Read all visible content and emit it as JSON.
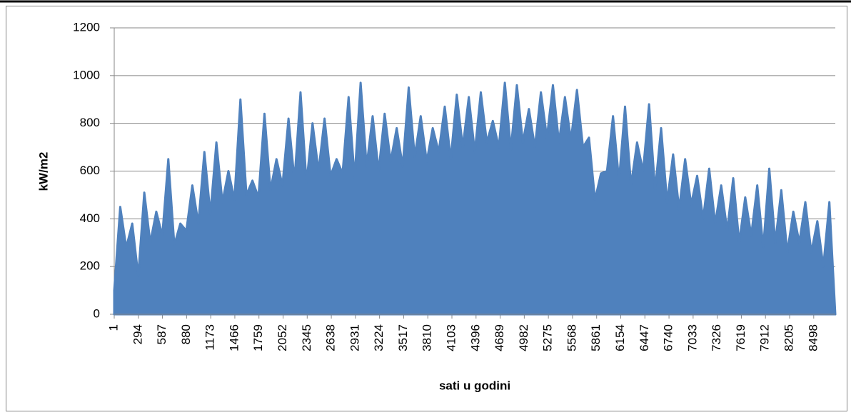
{
  "chart_data": {
    "type": "area",
    "x_label": "sati u godini",
    "y_label": "kW/m2",
    "color": "#4f81bd",
    "grid": true,
    "x": [
      1,
      74,
      147,
      220,
      293,
      366,
      439,
      512,
      585,
      658,
      731,
      804,
      877,
      950,
      1023,
      1096,
      1169,
      1242,
      1315,
      1388,
      1461,
      1534,
      1607,
      1680,
      1753,
      1826,
      1899,
      1972,
      2045,
      2118,
      2191,
      2264,
      2337,
      2410,
      2483,
      2556,
      2629,
      2702,
      2775,
      2848,
      2921,
      2994,
      3067,
      3140,
      3213,
      3286,
      3359,
      3432,
      3505,
      3578,
      3651,
      3724,
      3797,
      3870,
      3943,
      4016,
      4089,
      4162,
      4235,
      4308,
      4381,
      4454,
      4527,
      4600,
      4673,
      4746,
      4819,
      4892,
      4965,
      5038,
      5111,
      5184,
      5257,
      5330,
      5403,
      5476,
      5549,
      5622,
      5695,
      5768,
      5841,
      5914,
      5987,
      6060,
      6133,
      6206,
      6279,
      6352,
      6425,
      6498,
      6571,
      6644,
      6717,
      6790,
      6863,
      6936,
      7009,
      7082,
      7155,
      7228,
      7301,
      7374,
      7447,
      7520,
      7593,
      7666,
      7739,
      7812,
      7885,
      7958,
      8031,
      8104,
      8177,
      8250,
      8323,
      8396,
      8469,
      8542,
      8615,
      8688,
      8760
    ],
    "values": [
      100,
      450,
      280,
      380,
      160,
      510,
      300,
      430,
      330,
      650,
      290,
      380,
      350,
      540,
      380,
      680,
      420,
      720,
      470,
      600,
      480,
      900,
      500,
      560,
      490,
      840,
      520,
      650,
      540,
      820,
      560,
      930,
      550,
      800,
      600,
      820,
      580,
      650,
      590,
      910,
      570,
      970,
      620,
      830,
      600,
      840,
      640,
      780,
      620,
      950,
      660,
      830,
      640,
      780,
      680,
      870,
      650,
      920,
      700,
      910,
      680,
      930,
      720,
      810,
      700,
      970,
      690,
      960,
      720,
      860,
      700,
      930,
      740,
      960,
      720,
      910,
      730,
      940,
      700,
      740,
      480,
      590,
      600,
      830,
      560,
      870,
      540,
      720,
      600,
      880,
      520,
      780,
      470,
      670,
      440,
      650,
      460,
      580,
      400,
      610,
      380,
      540,
      350,
      570,
      300,
      490,
      330,
      540,
      280,
      610,
      300,
      520,
      260,
      430,
      300,
      470,
      260,
      390,
      200,
      470,
      0
    ],
    "xlim": [
      1,
      8760
    ],
    "xticks": [
      1,
      294,
      587,
      880,
      1173,
      1466,
      1759,
      2052,
      2345,
      2638,
      2931,
      3224,
      3517,
      3810,
      4103,
      4396,
      4689,
      4982,
      5275,
      5568,
      5861,
      6154,
      6447,
      6740,
      7033,
      7326,
      7619,
      7912,
      8205,
      8498
    ],
    "ylim": [
      0,
      1200
    ],
    "yticks": [
      0,
      200,
      400,
      600,
      800,
      1000,
      1200
    ]
  }
}
